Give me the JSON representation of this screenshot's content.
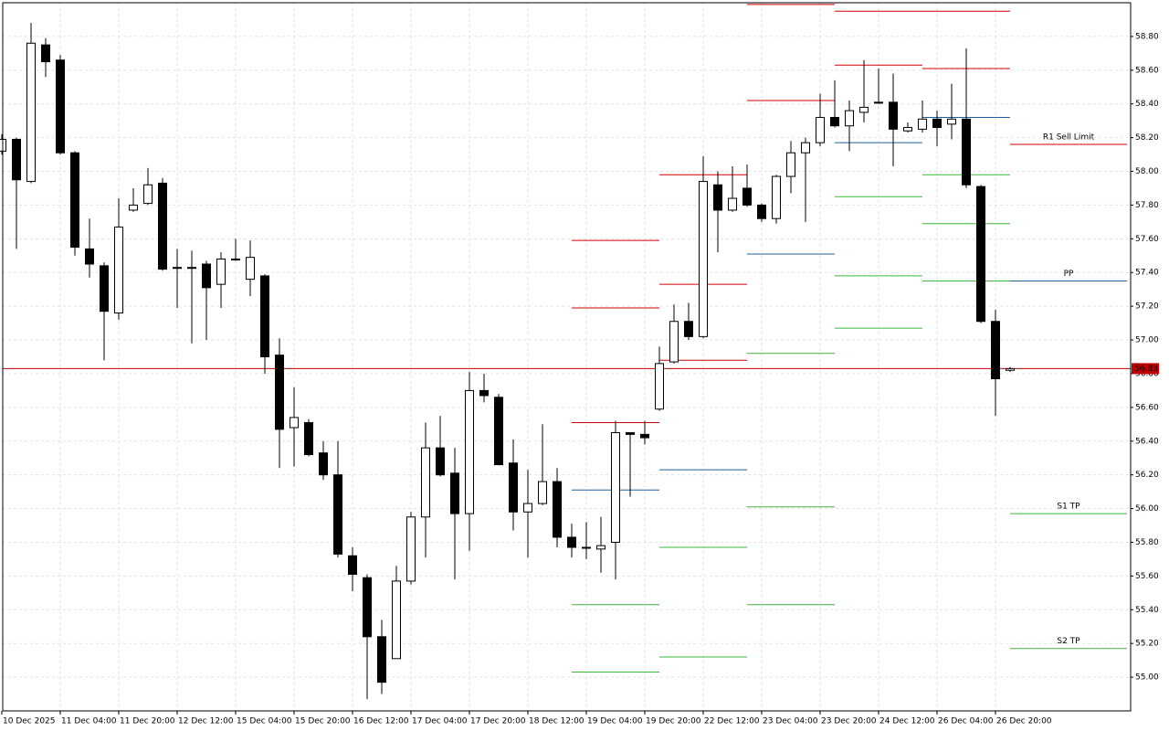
{
  "chart_data": {
    "type": "candlestick",
    "categories": [
      "10 Dec 2025",
      null,
      null,
      null,
      "11 Dec 04:00",
      null,
      null,
      null,
      "11 Dec 20:00",
      null,
      null,
      null,
      "12 Dec 12:00",
      null,
      null,
      null,
      "15 Dec 04:00",
      null,
      null,
      null,
      "15 Dec 20:00",
      null,
      null,
      null,
      "16 Dec 12:00",
      null,
      null,
      null,
      "17 Dec 04:00",
      null,
      null,
      null,
      "17 Dec 20:00",
      null,
      null,
      null,
      "18 Dec 12:00",
      null,
      null,
      null,
      "19 Dec 04:00",
      null,
      null,
      null,
      "19 Dec 20:00",
      null,
      null,
      null,
      "22 Dec 12:00",
      null,
      null,
      null,
      "23 Dec 04:00",
      null,
      null,
      null,
      "23 Dec 20:00",
      null,
      null,
      null,
      "24 Dec 12:00",
      null,
      null,
      null,
      "26 Dec 04:00",
      null,
      null,
      null,
      "26 Dec 20:00",
      null
    ],
    "open": [
      58.12,
      58.19,
      57.94,
      58.75,
      58.66,
      58.11,
      57.54,
      57.44,
      57.16,
      57.77,
      57.81,
      57.93,
      57.43,
      57.43,
      57.45,
      57.33,
      57.48,
      57.36,
      57.38,
      56.91,
      56.48,
      56.51,
      56.33,
      56.2,
      55.72,
      55.59,
      55.24,
      55.11,
      55.57,
      55.95,
      56.36,
      56.21,
      55.97,
      56.7,
      56.66,
      56.27,
      55.98,
      56.03,
      56.16,
      55.83,
      55.77,
      55.76,
      55.8,
      56.45,
      56.44,
      56.59,
      56.87,
      57.11,
      57.02,
      57.92,
      57.77,
      57.9,
      57.8,
      57.72,
      57.97,
      58.11,
      58.17,
      58.32,
      58.27,
      58.35,
      58.41,
      58.41,
      58.24,
      58.25,
      58.31,
      58.28,
      58.31,
      57.91,
      57.11,
      56.82
    ],
    "high": [
      58.22,
      58.2,
      58.88,
      58.79,
      58.69,
      58.12,
      57.72,
      57.46,
      57.84,
      57.9,
      58.02,
      57.96,
      57.54,
      57.53,
      57.47,
      57.52,
      57.6,
      57.59,
      57.39,
      57.01,
      56.72,
      56.53,
      56.4,
      56.4,
      55.77,
      55.61,
      55.34,
      55.66,
      55.98,
      56.51,
      56.55,
      56.36,
      56.81,
      56.8,
      56.68,
      56.41,
      56.23,
      56.5,
      56.24,
      55.91,
      55.92,
      55.95,
      56.52,
      56.45,
      56.52,
      56.96,
      57.21,
      57.22,
      58.09,
      58.0,
      58.03,
      58.04,
      57.81,
      57.98,
      58.18,
      58.2,
      58.46,
      58.54,
      58.42,
      58.66,
      58.61,
      58.58,
      58.29,
      58.42,
      58.36,
      58.52,
      58.73,
      57.92,
      57.18,
      56.84
    ],
    "low": [
      58.1,
      57.54,
      57.93,
      58.56,
      58.1,
      57.5,
      57.37,
      56.88,
      57.12,
      57.76,
      57.8,
      57.41,
      57.19,
      56.98,
      57.0,
      57.19,
      57.47,
      57.26,
      56.8,
      56.24,
      56.25,
      56.31,
      56.17,
      55.71,
      55.51,
      54.87,
      54.9,
      55.11,
      55.55,
      55.71,
      56.19,
      55.58,
      55.75,
      56.63,
      56.26,
      55.87,
      55.71,
      56.02,
      55.77,
      55.71,
      55.7,
      55.62,
      55.58,
      56.07,
      56.38,
      56.58,
      56.86,
      57.0,
      57.01,
      57.52,
      57.76,
      57.79,
      57.7,
      57.69,
      57.87,
      57.7,
      58.15,
      58.26,
      58.12,
      58.29,
      58.4,
      58.03,
      58.23,
      58.23,
      58.15,
      58.19,
      57.9,
      57.1,
      56.55,
      56.81
    ],
    "close": [
      58.19,
      57.95,
      58.76,
      58.65,
      58.11,
      57.55,
      57.45,
      57.17,
      57.67,
      57.8,
      57.92,
      57.42,
      57.43,
      57.43,
      57.31,
      57.48,
      57.48,
      57.49,
      56.9,
      56.47,
      56.54,
      56.32,
      56.2,
      55.73,
      55.61,
      55.24,
      54.97,
      55.57,
      55.95,
      56.36,
      56.2,
      55.97,
      56.7,
      56.67,
      56.26,
      55.98,
      56.03,
      56.16,
      55.83,
      55.77,
      55.77,
      55.78,
      56.45,
      56.44,
      56.42,
      56.86,
      57.11,
      57.02,
      57.94,
      57.77,
      57.84,
      57.8,
      57.72,
      57.97,
      58.11,
      58.17,
      58.32,
      58.27,
      58.36,
      58.38,
      58.41,
      58.25,
      58.26,
      58.31,
      58.26,
      58.31,
      57.92,
      57.11,
      56.77,
      56.83
    ],
    "up_color": "#ffffff",
    "down_color": "#000000",
    "ylim": [
      54.8,
      59.0
    ],
    "yticks": [
      {
        "value": 55.0,
        "label": "55.00"
      },
      {
        "value": 55.2,
        "label": "55.20"
      },
      {
        "value": 55.4,
        "label": "55.40"
      },
      {
        "value": 55.6,
        "label": "55.60"
      },
      {
        "value": 55.8,
        "label": "55.80"
      },
      {
        "value": 56.0,
        "label": "56.00"
      },
      {
        "value": 56.2,
        "label": "56.20"
      },
      {
        "value": 56.4,
        "label": "56.40"
      },
      {
        "value": 56.6,
        "label": "56.60"
      },
      {
        "value": 56.8,
        "label": "56.80"
      },
      {
        "value": 57.0,
        "label": "57.00"
      },
      {
        "value": 57.2,
        "label": "57.20"
      },
      {
        "value": 57.4,
        "label": "57.40"
      },
      {
        "value": 57.6,
        "label": "57.60"
      },
      {
        "value": 57.8,
        "label": "57.80"
      },
      {
        "value": 58.0,
        "label": "58.00"
      },
      {
        "value": 58.2,
        "label": "58.20"
      },
      {
        "value": 58.4,
        "label": "58.40"
      },
      {
        "value": 58.6,
        "label": "58.60"
      },
      {
        "value": 58.8,
        "label": "58.80"
      }
    ],
    "grid": true,
    "current_price": {
      "value": 56.83,
      "label": "56.83",
      "color": "#c00000"
    },
    "level_colors": {
      "r": "#d00000",
      "pp": "#1f5f9f",
      "s": "#3cb83c"
    },
    "pivots": [
      {
        "from": 39,
        "to": 45,
        "levels": [
          {
            "kind": "r",
            "value": 57.59
          },
          {
            "kind": "r",
            "value": 57.19
          },
          {
            "kind": "r",
            "value": 56.51
          },
          {
            "kind": "pp",
            "value": 56.11
          },
          {
            "kind": "s",
            "value": 55.43
          },
          {
            "kind": "s",
            "value": 55.03
          }
        ]
      },
      {
        "from": 45,
        "to": 51,
        "levels": [
          {
            "kind": "r",
            "value": 57.98
          },
          {
            "kind": "r",
            "value": 57.33
          },
          {
            "kind": "r",
            "value": 56.88
          },
          {
            "kind": "pp",
            "value": 56.23
          },
          {
            "kind": "s",
            "value": 55.77
          },
          {
            "kind": "s",
            "value": 55.12
          }
        ]
      },
      {
        "from": 51,
        "to": 57,
        "levels": [
          {
            "kind": "r",
            "value": 58.99
          },
          {
            "kind": "r",
            "value": 58.42
          },
          {
            "kind": "pp",
            "value": 57.51
          },
          {
            "kind": "s",
            "value": 56.92
          },
          {
            "kind": "s",
            "value": 56.01
          },
          {
            "kind": "s",
            "value": 55.43
          }
        ]
      },
      {
        "from": 57,
        "to": 63,
        "levels": [
          {
            "kind": "r",
            "value": 58.95
          },
          {
            "kind": "r",
            "value": 58.63
          },
          {
            "kind": "pp",
            "value": 58.17
          },
          {
            "kind": "s",
            "value": 57.85
          },
          {
            "kind": "s",
            "value": 57.38
          },
          {
            "kind": "s",
            "value": 57.07
          }
        ]
      },
      {
        "from": 63,
        "to": 69,
        "levels": [
          {
            "kind": "r",
            "value": 58.95
          },
          {
            "kind": "r",
            "value": 58.61
          },
          {
            "kind": "pp",
            "value": 58.32
          },
          {
            "kind": "s",
            "value": 57.98
          },
          {
            "kind": "s",
            "value": 57.69
          },
          {
            "kind": "s",
            "value": 57.35
          }
        ]
      },
      {
        "from": 69,
        "to": 77,
        "levels": [
          {
            "kind": "r",
            "value": 58.16,
            "label": "R1 Sell Limit"
          },
          {
            "kind": "pp",
            "value": 57.35,
            "label": "PP"
          },
          {
            "kind": "s",
            "value": 55.97,
            "label": "S1 TP"
          },
          {
            "kind": "s",
            "value": 55.17,
            "label": "S2 TP"
          }
        ]
      }
    ]
  }
}
